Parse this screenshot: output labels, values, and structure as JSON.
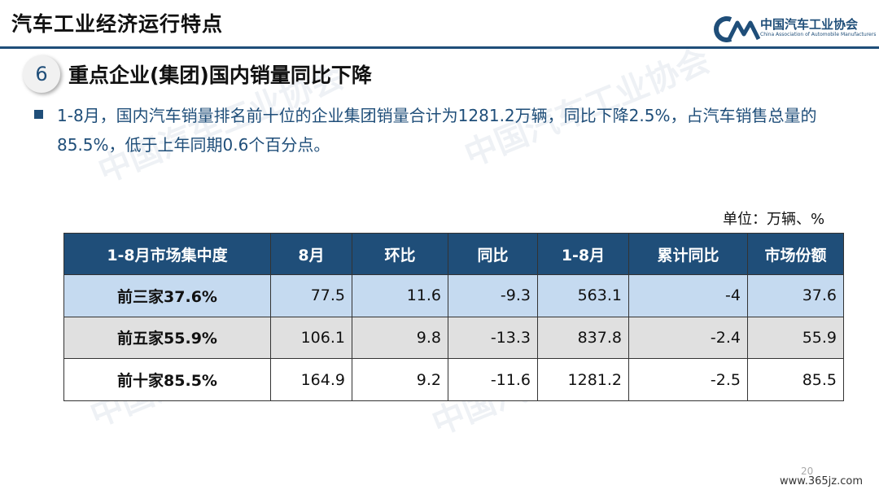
{
  "header": {
    "title": "汽车工业经济运行特点",
    "logo_cn": "中国汽车工业协会",
    "logo_en": "China Association of Automobile Manufacturers",
    "logo_color": "#1f4e79"
  },
  "section": {
    "number": "6",
    "title": "重点企业(集团)国内销量同比下降"
  },
  "body_text": "1-8月，国内汽车销量排名前十位的企业集团销量合计为1281.2万辆，同比下降2.5%，占汽车销售总量的85.5%，低于上年同期0.6个百分点。",
  "unit": "单位：万辆、%",
  "table": {
    "headers": [
      "1-8月市场集中度",
      "8月",
      "环比",
      "同比",
      "1-8月",
      "累计同比",
      "市场份额"
    ],
    "rows": [
      [
        "前三家37.6%",
        "77.5",
        "11.6",
        "-9.3",
        "563.1",
        "-4",
        "37.6"
      ],
      [
        "前五家55.9%",
        "106.1",
        "9.8",
        "-13.3",
        "837.8",
        "-2.4",
        "55.9"
      ],
      [
        "前十家85.5%",
        "164.9",
        "9.2",
        "-11.6",
        "1281.2",
        "-2.5",
        "85.5"
      ]
    ],
    "colors": {
      "header_bg": "#1f4e79",
      "row1_bg": "#c5daf0",
      "row2_bg": "#e0e0e0",
      "row3_bg": "#ffffff"
    }
  },
  "footer": {
    "page_number": "20",
    "site": "www.365jz.com"
  }
}
